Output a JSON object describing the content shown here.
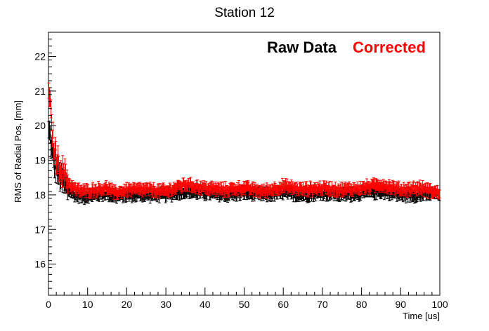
{
  "chart_data": {
    "type": "scatter",
    "title": "Station 12",
    "xlabel": "Time [us]",
    "ylabel": "RMS of Radial Pos. [mm]",
    "xlim": [
      0,
      100
    ],
    "ylim": [
      15.1,
      22.7
    ],
    "xticks": [
      0,
      10,
      20,
      30,
      40,
      50,
      60,
      70,
      80,
      90,
      100
    ],
    "yticks": [
      16,
      17,
      18,
      19,
      20,
      21,
      22
    ],
    "grid": false,
    "legend_position": "top-right",
    "error_bars": true,
    "series": [
      {
        "name": "Raw Data",
        "color": "#000000",
        "x": [
          0.3,
          0.8,
          1.5,
          2.5,
          3.5,
          4.5,
          5.5,
          7,
          9,
          12,
          15,
          17,
          20,
          25,
          30,
          35,
          40,
          45,
          50,
          55,
          60,
          65,
          70,
          75,
          80,
          85,
          90,
          95,
          100
        ],
        "y": [
          19.8,
          19.3,
          18.9,
          18.6,
          18.4,
          18.2,
          18.1,
          18.0,
          17.95,
          18.0,
          18.05,
          17.95,
          18.0,
          18.0,
          18.0,
          18.1,
          18.05,
          18.0,
          18.05,
          18.0,
          18.05,
          18.0,
          18.05,
          18.0,
          18.05,
          18.1,
          18.0,
          18.0,
          18.05
        ]
      },
      {
        "name": "Corrected",
        "color": "#ff0000",
        "x": [
          0.3,
          0.8,
          1.5,
          2.5,
          3.5,
          4.5,
          5.5,
          7,
          9,
          12,
          15,
          17,
          20,
          25,
          30,
          35,
          40,
          45,
          50,
          55,
          60,
          65,
          70,
          75,
          80,
          85,
          90,
          95,
          100
        ],
        "y": [
          20.8,
          20.0,
          19.3,
          18.9,
          18.7,
          18.5,
          18.3,
          18.15,
          18.1,
          18.15,
          18.2,
          18.05,
          18.15,
          18.15,
          18.1,
          18.3,
          18.2,
          18.15,
          18.2,
          18.1,
          18.25,
          18.15,
          18.2,
          18.15,
          18.2,
          18.3,
          18.15,
          18.2,
          18.05
        ]
      }
    ]
  }
}
